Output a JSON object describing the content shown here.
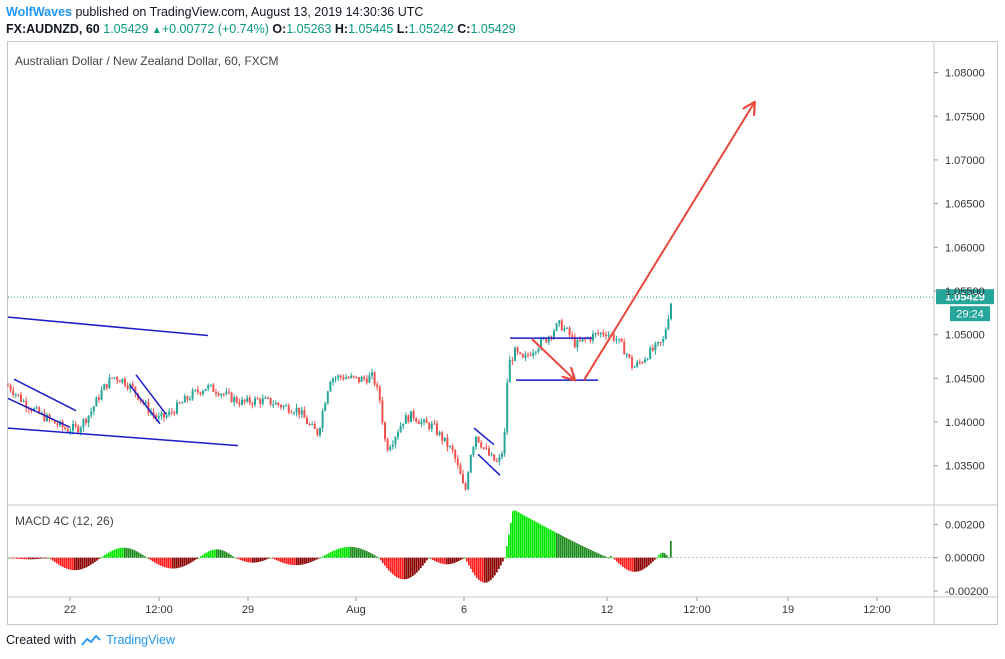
{
  "header": {
    "author": "WolfWaves",
    "published_text": " published on TradingView.com, August 13, 2019 14:30:36 UTC",
    "symbol": "FX:AUDNZD, 60",
    "last": "1.05429",
    "arrow": "▲",
    "change": "+0.00772 (+0.74%)",
    "o_label": "O:",
    "o_value": "1.05263",
    "h_label": "H:",
    "h_value": "1.05445",
    "l_label": "L:",
    "l_value": "1.05242",
    "c_label": "C:",
    "c_value": "1.05429"
  },
  "footer": {
    "created_with": "Created with",
    "brand": "TradingView",
    "logo_icon": "tradingview-cloud-icon"
  },
  "colors": {
    "up": "#26a69a",
    "down": "#ef5350",
    "trendline": "#1c1cc8",
    "arrow": "#e8473c",
    "price_tag": "#26a69a",
    "macd_up_strong": "#00e600",
    "macd_up_weak": "#1d8a1d",
    "macd_down_strong": "#ff1e1e",
    "macd_down_weak": "#8b0000"
  },
  "chart_data": [
    {
      "type": "candlestick",
      "title": "Australian Dollar / New Zealand Dollar, 60, FXCM",
      "y_ticks": [
        "1.08000",
        "1.07500",
        "1.07000",
        "1.06500",
        "1.06000",
        "1.05500",
        "1.05000",
        "1.04500",
        "1.04000",
        "1.03500"
      ],
      "ylim": [
        1.0305,
        1.0835
      ],
      "last_price": "1.05429",
      "countdown": "29:24",
      "x_ticks": [
        "22",
        "12:00",
        "29",
        "Aug",
        "6",
        "12",
        "12:00",
        "19",
        "12:00"
      ],
      "price_path": [
        [
          0,
          1.0442
        ],
        [
          14,
          1.0425
        ],
        [
          30,
          1.041
        ],
        [
          48,
          1.0398
        ],
        [
          58,
          1.0392
        ],
        [
          70,
          1.0393
        ],
        [
          82,
          1.041
        ],
        [
          95,
          1.0438
        ],
        [
          105,
          1.0452
        ],
        [
          115,
          1.0448
        ],
        [
          125,
          1.0438
        ],
        [
          140,
          1.0415
        ],
        [
          150,
          1.0403
        ],
        [
          160,
          1.0408
        ],
        [
          172,
          1.042
        ],
        [
          185,
          1.0432
        ],
        [
          198,
          1.044
        ],
        [
          210,
          1.0436
        ],
        [
          222,
          1.0428
        ],
        [
          235,
          1.0422
        ],
        [
          250,
          1.0425
        ],
        [
          262,
          1.0423
        ],
        [
          275,
          1.0418
        ],
        [
          290,
          1.0414
        ],
        [
          302,
          1.0395
        ],
        [
          310,
          1.0387
        ],
        [
          316,
          1.042
        ],
        [
          322,
          1.045
        ],
        [
          335,
          1.0452
        ],
        [
          350,
          1.0448
        ],
        [
          365,
          1.0452
        ],
        [
          372,
          1.0425
        ],
        [
          378,
          1.037
        ],
        [
          385,
          1.038
        ],
        [
          395,
          1.0402
        ],
        [
          405,
          1.0408
        ],
        [
          415,
          1.0398
        ],
        [
          425,
          1.0395
        ],
        [
          435,
          1.038
        ],
        [
          445,
          1.0365
        ],
        [
          452,
          1.034
        ],
        [
          457,
          1.0318
        ],
        [
          462,
          1.0362
        ],
        [
          468,
          1.0385
        ],
        [
          475,
          1.0372
        ],
        [
          482,
          1.036
        ],
        [
          490,
          1.0352
        ],
        [
          496,
          1.0372
        ],
        [
          500,
          1.0465
        ],
        [
          507,
          1.048
        ],
        [
          515,
          1.047
        ],
        [
          522,
          1.048
        ],
        [
          530,
          1.0488
        ],
        [
          538,
          1.0495
        ],
        [
          545,
          1.0505
        ],
        [
          552,
          1.0512
        ],
        [
          560,
          1.0502
        ],
        [
          568,
          1.0488
        ],
        [
          578,
          1.0495
        ],
        [
          588,
          1.05
        ],
        [
          598,
          1.0503
        ],
        [
          608,
          1.0495
        ],
        [
          618,
          1.048
        ],
        [
          625,
          1.0462
        ],
        [
          632,
          1.0468
        ],
        [
          640,
          1.0478
        ],
        [
          648,
          1.0485
        ],
        [
          655,
          1.0492
        ],
        [
          660,
          1.052
        ],
        [
          664,
          1.05429
        ]
      ],
      "annotations": [
        {
          "kind": "trendline",
          "from": [
            0,
            1.052
          ],
          "to": [
            200,
            1.0499
          ]
        },
        {
          "kind": "trendline",
          "from": [
            0,
            1.0393
          ],
          "to": [
            230,
            1.0373
          ]
        },
        {
          "kind": "trendline",
          "from": [
            6,
            1.0449
          ],
          "to": [
            68,
            1.0413
          ]
        },
        {
          "kind": "trendline",
          "from": [
            0,
            1.0427
          ],
          "to": [
            62,
            1.0394
          ]
        },
        {
          "kind": "trendline",
          "from": [
            128,
            1.0454
          ],
          "to": [
            158,
            1.0409
          ]
        },
        {
          "kind": "trendline",
          "from": [
            122,
            1.0442
          ],
          "to": [
            152,
            1.0398
          ]
        },
        {
          "kind": "trendline",
          "from": [
            466,
            1.0393
          ],
          "to": [
            486,
            1.0374
          ]
        },
        {
          "kind": "trendline",
          "from": [
            470,
            1.0363
          ],
          "to": [
            492,
            1.0339
          ]
        },
        {
          "kind": "trendline",
          "from": [
            502,
            1.0496
          ],
          "to": [
            584,
            1.0496
          ]
        },
        {
          "kind": "trendline",
          "from": [
            508,
            1.0448
          ],
          "to": [
            590,
            1.0448
          ]
        },
        {
          "kind": "arrow",
          "from": [
            524,
            1.0495
          ],
          "to": [
            566,
            1.0449
          ]
        },
        {
          "kind": "arrow",
          "from": [
            576,
            1.0448
          ],
          "to": [
            746,
            1.0765
          ]
        }
      ]
    },
    {
      "type": "bar",
      "title": "MACD 4C (12, 26)",
      "y_ticks": [
        "0.00200",
        "0.00000",
        "-0.00200"
      ],
      "ylim": [
        -0.0023,
        0.0031
      ],
      "segments": [
        {
          "start": 0,
          "end": 40,
          "peak": -0.0001
        },
        {
          "start": 40,
          "end": 92,
          "peak": -0.00075
        },
        {
          "start": 92,
          "end": 138,
          "peak": 0.0006
        },
        {
          "start": 138,
          "end": 190,
          "peak": -0.00065
        },
        {
          "start": 190,
          "end": 226,
          "peak": 0.0005
        },
        {
          "start": 226,
          "end": 262,
          "peak": -0.0003
        },
        {
          "start": 262,
          "end": 312,
          "peak": -0.00045
        },
        {
          "start": 312,
          "end": 370,
          "peak": 0.00065
        },
        {
          "start": 370,
          "end": 420,
          "peak": -0.0013
        },
        {
          "start": 420,
          "end": 456,
          "peak": -0.0004
        },
        {
          "start": 456,
          "end": 496,
          "peak": -0.0015
        },
        {
          "start": 496,
          "end": 600,
          "peak": 0.0029
        },
        {
          "start": 600,
          "end": 604,
          "peak": 0.0001
        },
        {
          "start": 604,
          "end": 648,
          "peak": -0.00085
        },
        {
          "start": 648,
          "end": 660,
          "peak": 0.0003
        },
        {
          "start": 660,
          "end": 664,
          "peak": 0.001
        }
      ]
    }
  ]
}
